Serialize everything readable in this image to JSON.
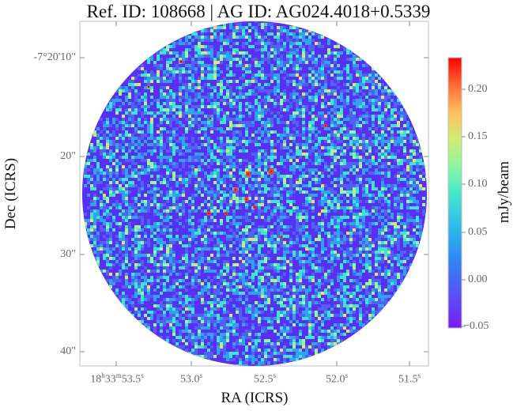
{
  "title": "Ref. ID: 108668 | AG ID: AG024.4018+0.5339",
  "x_axis": {
    "label": "RA (ICRS)",
    "ticks": [
      {
        "h": "18",
        "m": "33",
        "s": "53.5"
      },
      {
        "h": "",
        "m": "",
        "s": "53.0"
      },
      {
        "h": "",
        "m": "",
        "s": "52.5"
      },
      {
        "h": "",
        "m": "",
        "s": "52.0"
      },
      {
        "h": "",
        "m": "",
        "s": "51.5"
      }
    ]
  },
  "y_axis": {
    "label": "Dec (ICRS)",
    "ticks": [
      "-7°20'10\"",
      "20\"",
      "30\"",
      "40\""
    ]
  },
  "colorbar": {
    "label": "mJy/beam",
    "ticks": [
      "0.20",
      "0.15",
      "0.10",
      "0.05",
      "0.00",
      "−0.05"
    ],
    "range": [
      -0.055,
      0.235
    ],
    "colormap": "rainbow",
    "colors": [
      "#7a1cf5",
      "#4f61f7",
      "#2fa3f0",
      "#3fe4d4",
      "#9cf79a",
      "#e8e06a",
      "#ff9a4f",
      "#ff3a1d",
      "#ff0000"
    ]
  },
  "image": {
    "shape": "circular field",
    "edge_color": "#bbbbbb",
    "background": "#ffffff"
  }
}
